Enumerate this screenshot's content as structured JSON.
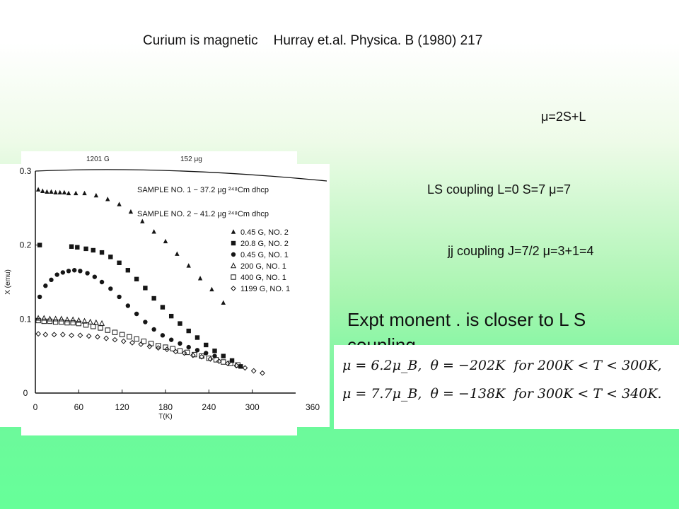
{
  "title": {
    "left": "Curium is magnetic",
    "right": "Hurray et.al. Physica. B (1980) 217"
  },
  "annotations": {
    "mu_definition": "μ=2S+L",
    "ls_coupling": "LS coupling L=0 S=7 μ=7",
    "jj_coupling": "jj coupling J=7/2 μ=3+1=4",
    "conclusion": "Expt monent . is closer to L S coupling"
  },
  "formulas": [
    {
      "mu": "μ = 6.2μ_B,",
      "theta": "θ = −202K",
      "range": "for 200K < T < 300K,"
    },
    {
      "mu": "μ = 7.7μ_B,",
      "theta": "θ = −138K",
      "range": "for 300K < T < 340K."
    }
  ],
  "scan_header": {
    "left": "1201 G",
    "right": "152 μg"
  },
  "chart_data": {
    "type": "scatter",
    "xlabel": "T(K)",
    "ylabel": "X (emu)",
    "xlim": [
      0,
      360
    ],
    "ylim": [
      0,
      0.3
    ],
    "x_ticks": [
      0,
      60,
      120,
      180,
      240,
      300,
      360
    ],
    "y_ticks": [
      0,
      0.1,
      0.2,
      0.3
    ],
    "y_tick_labels": [
      "0",
      "0.1",
      "0.2",
      "0.3"
    ],
    "grid": false,
    "legend_samples": [
      "SAMPLE NO. 1 − 37.2 μg ²⁴⁸Cm dhcp",
      "SAMPLE NO. 2 − 41.2 μg ²⁴⁸Cm dhcp"
    ],
    "series": [
      {
        "name": "0.45 G, NO. 2",
        "marker": "triangle",
        "x": [
          4,
          10,
          16,
          22,
          28,
          34,
          40,
          46,
          56,
          68,
          84,
          100,
          116,
          132,
          148,
          164,
          180,
          196,
          212,
          228,
          244,
          260
        ],
        "y": [
          0.275,
          0.273,
          0.272,
          0.272,
          0.271,
          0.271,
          0.271,
          0.27,
          0.27,
          0.27,
          0.267,
          0.262,
          0.255,
          0.245,
          0.232,
          0.218,
          0.205,
          0.188,
          0.172,
          0.155,
          0.14,
          0.122
        ]
      },
      {
        "name": "20.8 G, NO. 2",
        "marker": "square-filled",
        "x": [
          6,
          50,
          58,
          70,
          80,
          92,
          104,
          116,
          128,
          140,
          152,
          164,
          176,
          188,
          200,
          212,
          224,
          236,
          248,
          260,
          272,
          284
        ],
        "y": [
          0.2,
          0.198,
          0.197,
          0.195,
          0.193,
          0.19,
          0.184,
          0.176,
          0.166,
          0.154,
          0.142,
          0.128,
          0.116,
          0.104,
          0.094,
          0.084,
          0.075,
          0.065,
          0.057,
          0.05,
          0.044,
          0.036
        ]
      },
      {
        "name": "0.45 G, NO. 1",
        "marker": "circle-filled",
        "x": [
          6,
          14,
          22,
          30,
          38,
          46,
          54,
          62,
          72,
          82,
          92,
          104,
          116,
          128,
          140,
          152,
          164,
          176,
          188,
          200,
          212,
          224,
          236,
          248
        ],
        "y": [
          0.13,
          0.145,
          0.153,
          0.16,
          0.163,
          0.165,
          0.166,
          0.165,
          0.162,
          0.157,
          0.15,
          0.141,
          0.13,
          0.118,
          0.107,
          0.096,
          0.086,
          0.078,
          0.072,
          0.067,
          0.062,
          0.058,
          0.054,
          0.05
        ]
      },
      {
        "name": "200 G, NO. 1",
        "marker": "triangle-open",
        "x": [
          4,
          12,
          20,
          28,
          36,
          44,
          52,
          60,
          68,
          76,
          84,
          92
        ],
        "y": [
          0.101,
          0.101,
          0.1,
          0.1,
          0.1,
          0.099,
          0.099,
          0.098,
          0.097,
          0.096,
          0.095,
          0.094
        ]
      },
      {
        "name": "400 G, NO. 1",
        "marker": "square-open",
        "x": [
          4,
          12,
          20,
          28,
          36,
          44,
          52,
          60,
          70,
          80,
          90,
          100,
          110,
          120,
          130,
          140,
          150,
          160,
          170,
          180,
          190,
          200,
          210,
          220,
          230,
          240,
          250,
          260,
          270,
          280
        ],
        "y": [
          0.098,
          0.097,
          0.097,
          0.096,
          0.096,
          0.095,
          0.095,
          0.094,
          0.092,
          0.09,
          0.088,
          0.085,
          0.082,
          0.079,
          0.076,
          0.073,
          0.07,
          0.067,
          0.064,
          0.062,
          0.06,
          0.057,
          0.055,
          0.052,
          0.05,
          0.047,
          0.045,
          0.042,
          0.04,
          0.038
        ]
      },
      {
        "name": "1199 G, NO. 1",
        "marker": "diamond-open",
        "x": [
          4,
          14,
          26,
          38,
          50,
          62,
          74,
          86,
          98,
          110,
          122,
          134,
          146,
          158,
          170,
          182,
          194,
          206,
          218,
          230,
          242,
          254,
          266,
          278,
          290,
          302,
          314
        ],
        "y": [
          0.08,
          0.079,
          0.079,
          0.079,
          0.078,
          0.078,
          0.077,
          0.076,
          0.074,
          0.072,
          0.07,
          0.068,
          0.066,
          0.063,
          0.061,
          0.059,
          0.056,
          0.054,
          0.051,
          0.049,
          0.046,
          0.043,
          0.04,
          0.037,
          0.034,
          0.03,
          0.027
        ]
      }
    ]
  }
}
